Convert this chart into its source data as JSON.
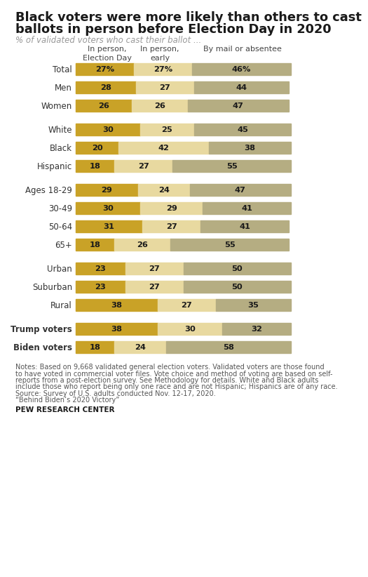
{
  "title_line1": "Black voters were more likely than others to cast",
  "title_line2": "ballots in person before Election Day in 2020",
  "subtitle": "% of validated voters who cast their ballot ...",
  "col_headers": [
    "In person,\nElection Day",
    "In person,\nearly",
    "By mail or absentee"
  ],
  "categories": [
    "Total",
    "Men",
    "Women",
    "White",
    "Black",
    "Hispanic",
    "Ages 18-29",
    "30-49",
    "50-64",
    "65+",
    "Urban",
    "Suburban",
    "Rural",
    "Trump voters",
    "Biden voters"
  ],
  "values": [
    [
      27,
      27,
      46
    ],
    [
      28,
      27,
      44
    ],
    [
      26,
      26,
      47
    ],
    [
      30,
      25,
      45
    ],
    [
      20,
      42,
      38
    ],
    [
      18,
      27,
      55
    ],
    [
      29,
      24,
      47
    ],
    [
      30,
      29,
      41
    ],
    [
      31,
      27,
      41
    ],
    [
      18,
      26,
      55
    ],
    [
      23,
      27,
      50
    ],
    [
      23,
      27,
      50
    ],
    [
      38,
      27,
      35
    ],
    [
      38,
      30,
      32
    ],
    [
      18,
      24,
      58
    ]
  ],
  "pct_labels": [
    [
      "27%",
      "27%",
      "46%"
    ],
    [
      "28",
      "27",
      "44"
    ],
    [
      "26",
      "26",
      "47"
    ],
    [
      "30",
      "25",
      "45"
    ],
    [
      "20",
      "42",
      "38"
    ],
    [
      "18",
      "27",
      "55"
    ],
    [
      "29",
      "24",
      "47"
    ],
    [
      "30",
      "29",
      "41"
    ],
    [
      "31",
      "27",
      "41"
    ],
    [
      "18",
      "26",
      "55"
    ],
    [
      "23",
      "27",
      "50"
    ],
    [
      "23",
      "27",
      "50"
    ],
    [
      "38",
      "27",
      "35"
    ],
    [
      "38",
      "30",
      "32"
    ],
    [
      "18",
      "24",
      "58"
    ]
  ],
  "colors": [
    "#C9A227",
    "#E8D9A0",
    "#B5AD82"
  ],
  "bg_color": "#FFFFFF",
  "notes_line1": "Notes: Based on 9,668 validated general election voters. Validated voters are those found",
  "notes_line2": "to have voted in commercial voter files. Vote choice and method of voting are based on self-",
  "notes_line3": "reports from a post-election survey. See Methodology for details. White and Black adults",
  "notes_line4": "include those who report being only one race and are not Hispanic; Hispanics are of any race.",
  "notes_line5": "Source: Survey of U.S. adults conducted Nov. 12-17, 2020.",
  "notes_line6": "“Behind Biden’s 2020 Victory”",
  "source": "PEW RESEARCH CENTER",
  "bold_labels": [
    "Trump voters",
    "Biden voters"
  ],
  "group_breaks": [
    3,
    6,
    10,
    13
  ]
}
